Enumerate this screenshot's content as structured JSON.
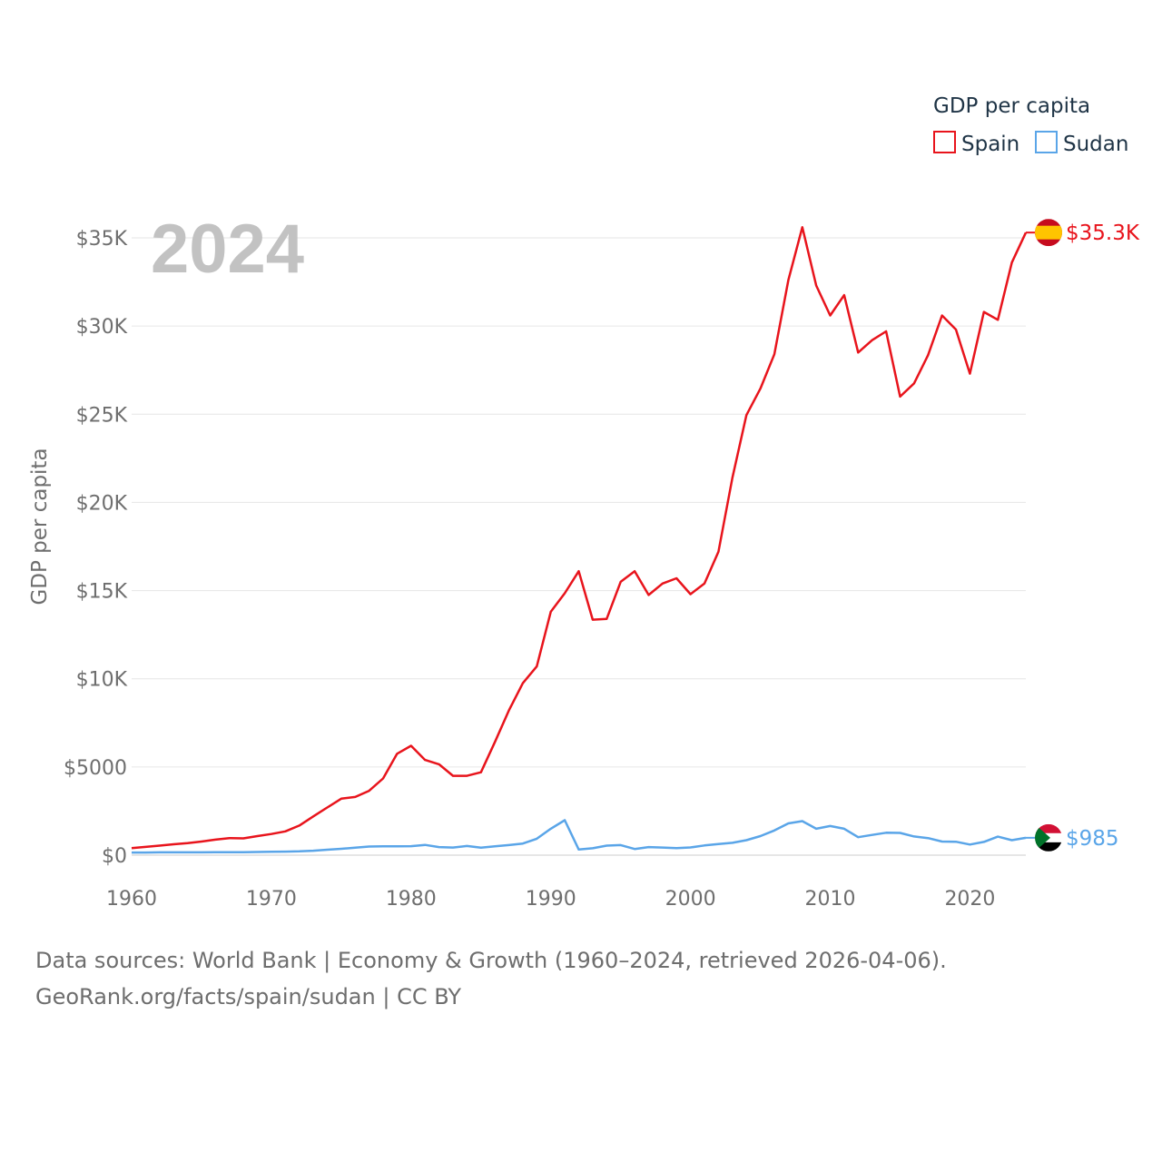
{
  "chart_data": {
    "type": "line",
    "year_label": "2024",
    "ylabel": "GDP per capita",
    "legend_title": "GDP per capita",
    "legend_position": "top-right",
    "xlim": [
      1960,
      2024
    ],
    "ylim": [
      0,
      35000
    ],
    "x_ticks": [
      1960,
      1970,
      1980,
      1990,
      2000,
      2010,
      2020
    ],
    "y_ticks": [
      {
        "value": 0,
        "label": "$0"
      },
      {
        "value": 5000,
        "label": "$5000"
      },
      {
        "value": 10000,
        "label": "$10K"
      },
      {
        "value": 15000,
        "label": "$15K"
      },
      {
        "value": 20000,
        "label": "$20K"
      },
      {
        "value": 25000,
        "label": "$25K"
      },
      {
        "value": 30000,
        "label": "$30K"
      },
      {
        "value": 35000,
        "label": "$35K"
      }
    ],
    "x": [
      1960,
      1961,
      1962,
      1963,
      1964,
      1965,
      1966,
      1967,
      1968,
      1969,
      1970,
      1971,
      1972,
      1973,
      1974,
      1975,
      1976,
      1977,
      1978,
      1979,
      1980,
      1981,
      1982,
      1983,
      1984,
      1985,
      1986,
      1987,
      1988,
      1989,
      1990,
      1991,
      1992,
      1993,
      1994,
      1995,
      1996,
      1997,
      1998,
      1999,
      2000,
      2001,
      2002,
      2003,
      2004,
      2005,
      2006,
      2007,
      2008,
      2009,
      2010,
      2011,
      2012,
      2013,
      2014,
      2015,
      2016,
      2017,
      2018,
      2019,
      2020,
      2021,
      2022,
      2023,
      2024
    ],
    "series": [
      {
        "name": "Spain",
        "color": "#e8141c",
        "end_label": "$35.3K",
        "flag": "spain-flag-icon",
        "values": [
          400,
          470,
          540,
          620,
          680,
          770,
          880,
          970,
          950,
          1080,
          1200,
          1350,
          1680,
          2200,
          2700,
          3200,
          3300,
          3650,
          4350,
          5750,
          6200,
          5400,
          5150,
          4500,
          4500,
          4700,
          6420,
          8200,
          9750,
          10700,
          13800,
          14850,
          16100,
          13350,
          13400,
          15500,
          16100,
          14750,
          15400,
          15700,
          14800,
          15400,
          17200,
          21400,
          24950,
          26450,
          28400,
          32600,
          35600,
          32300,
          30600,
          31750,
          28500,
          29200,
          29700,
          26000,
          26750,
          28350,
          30600,
          29800,
          27300,
          30800,
          30350,
          33600,
          35300
        ]
      },
      {
        "name": "Sudan",
        "color": "#5aa5e8",
        "end_label": "$985",
        "flag": "sudan-flag-icon",
        "values": [
          150,
          150,
          160,
          160,
          160,
          160,
          165,
          170,
          170,
          180,
          190,
          200,
          215,
          250,
          310,
          360,
          420,
          490,
          500,
          500,
          510,
          580,
          460,
          430,
          520,
          420,
          500,
          570,
          660,
          930,
          1500,
          1980,
          320,
          390,
          540,
          570,
          350,
          460,
          430,
          400,
          440,
          550,
          630,
          700,
          850,
          1080,
          1400,
          1800,
          1930,
          1500,
          1650,
          1500,
          1020,
          1150,
          1270,
          1260,
          1060,
          970,
          770,
          760,
          600,
          750,
          1050,
          850,
          985
        ]
      }
    ]
  },
  "footer": {
    "line1": "Data sources: World Bank | Economy & Growth (1960–2024, retrieved 2026-04-06).",
    "line2": "GeoRank.org/facts/spain/sudan | CC BY"
  }
}
